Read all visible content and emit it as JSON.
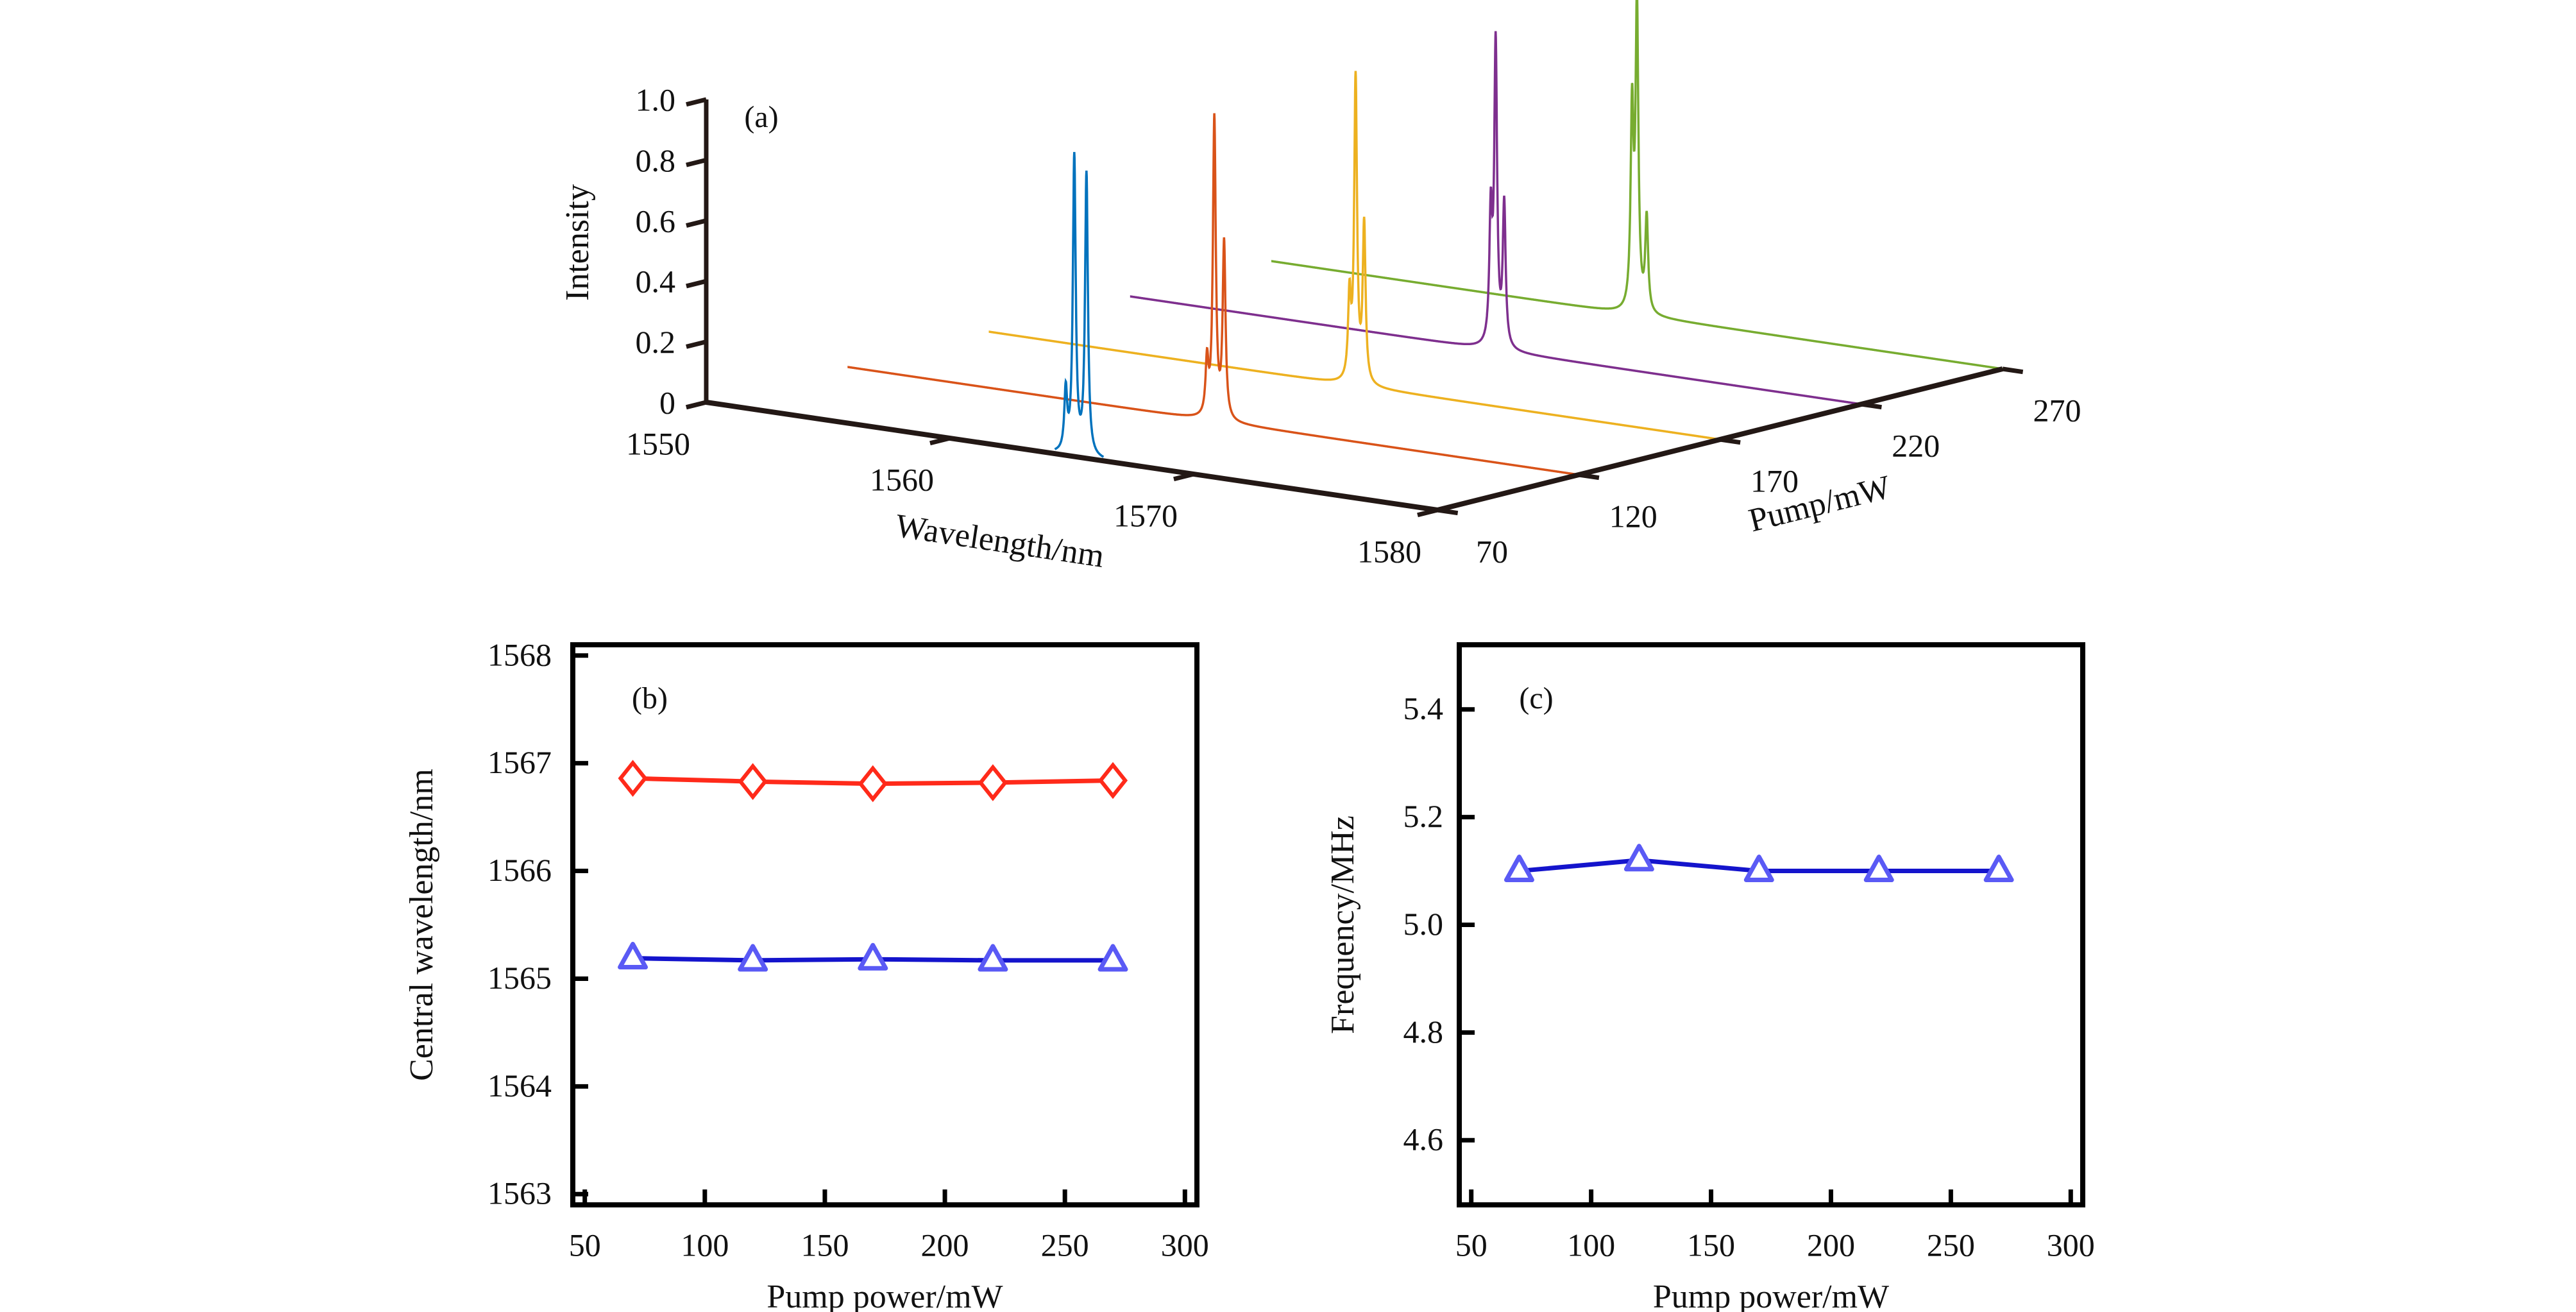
{
  "chart_data": [
    {
      "type": "line",
      "subtype": "3d-waterfall",
      "panel_label": "(a)",
      "xlabel": "Wavelength/nm",
      "ylabel": "Pump/mW",
      "zlabel": "Intensity",
      "xlim": [
        1550,
        1580
      ],
      "ylim": [
        70,
        270
      ],
      "zlim": [
        0,
        1.0
      ],
      "x_ticks": [
        "1550",
        "1560",
        "1570",
        "1580"
      ],
      "y_ticks": [
        "70",
        "120",
        "170",
        "220",
        "270"
      ],
      "z_ticks": [
        "0",
        "0.2",
        "0.4",
        "0.6",
        "0.8",
        "1.0"
      ],
      "series": [
        {
          "pump": 70,
          "color": "#0072BD",
          "peaks": [
            {
              "wavelength": 1564.75,
              "intensity": 0.2
            },
            {
              "wavelength": 1565.1,
              "intensity": 0.98
            },
            {
              "wavelength": 1565.6,
              "intensity": 0.93
            }
          ],
          "range": [
            1564.3,
            1566.3
          ]
        },
        {
          "pump": 120,
          "color": "#D95319",
          "peaks": [
            {
              "wavelength": 1564.75,
              "intensity": 0.18
            },
            {
              "wavelength": 1565.05,
              "intensity": 0.99
            },
            {
              "wavelength": 1565.45,
              "intensity": 0.58
            }
          ],
          "range": [
            1550,
            1580
          ]
        },
        {
          "pump": 170,
          "color": "#EDB120",
          "peaks": [
            {
              "wavelength": 1564.8,
              "intensity": 0.27
            },
            {
              "wavelength": 1565.05,
              "intensity": 1.0
            },
            {
              "wavelength": 1565.4,
              "intensity": 0.52
            }
          ],
          "range": [
            1550,
            1580
          ]
        },
        {
          "pump": 220,
          "color": "#7E2F8E",
          "peaks": [
            {
              "wavelength": 1564.8,
              "intensity": 0.42
            },
            {
              "wavelength": 1565.0,
              "intensity": 0.99
            },
            {
              "wavelength": 1565.35,
              "intensity": 0.47
            }
          ],
          "range": [
            1550,
            1580
          ]
        },
        {
          "pump": 270,
          "color": "#77AC30",
          "peaks": [
            {
              "wavelength": 1564.8,
              "intensity": 0.65
            },
            {
              "wavelength": 1565.0,
              "intensity": 1.0
            },
            {
              "wavelength": 1565.4,
              "intensity": 0.31
            }
          ],
          "range": [
            1550,
            1580
          ]
        }
      ]
    },
    {
      "type": "line",
      "panel_label": "(b)",
      "xlabel": "Pump power/mW",
      "ylabel": "Central wavelength/nm",
      "xlim": [
        45,
        305
      ],
      "ylim": [
        1562.9,
        1568.1
      ],
      "x_ticks": [
        "50",
        "100",
        "150",
        "200",
        "250",
        "300"
      ],
      "y_ticks": [
        "1563",
        "1564",
        "1565",
        "1566",
        "1567",
        "1568"
      ],
      "x": [
        70,
        120,
        170,
        220,
        270
      ],
      "series": [
        {
          "marker": "diamond",
          "line_color": "#FF2A1A",
          "marker_color": "#FF2A1A",
          "values": [
            1566.86,
            1566.83,
            1566.81,
            1566.82,
            1566.84
          ]
        },
        {
          "marker": "triangle",
          "line_color": "#1414CC",
          "marker_color": "#5A5AF5",
          "values": [
            1565.19,
            1565.17,
            1565.18,
            1565.17,
            1565.17
          ]
        }
      ]
    },
    {
      "type": "line",
      "panel_label": "(c)",
      "xlabel": "Pump power/mW",
      "ylabel": "Frequency/MHz",
      "xlim": [
        45,
        305
      ],
      "ylim": [
        4.48,
        5.52
      ],
      "x_ticks": [
        "50",
        "100",
        "150",
        "200",
        "250",
        "300"
      ],
      "y_ticks": [
        "4.6",
        "4.8",
        "5.0",
        "5.2",
        "5.4"
      ],
      "x": [
        70,
        120,
        170,
        220,
        270
      ],
      "series": [
        {
          "marker": "triangle",
          "line_color": "#1414CC",
          "marker_color": "#5A5AF5",
          "values": [
            5.1,
            5.12,
            5.1,
            5.1,
            5.1
          ]
        }
      ]
    }
  ]
}
